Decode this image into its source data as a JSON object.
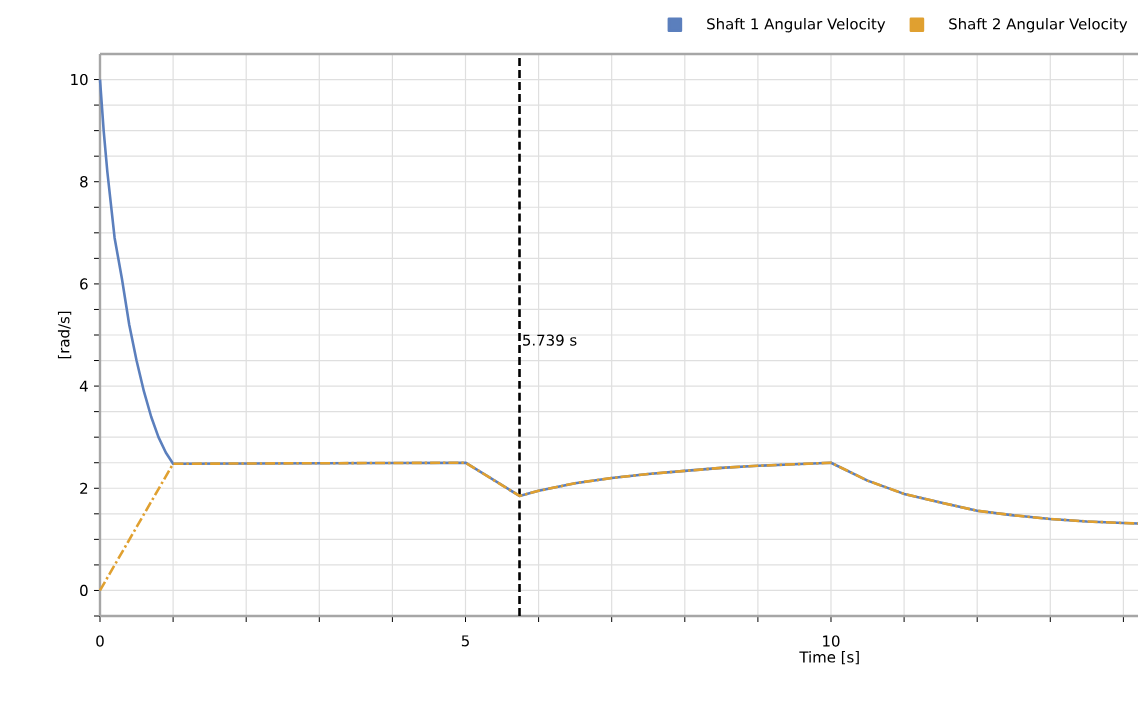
{
  "chart_data": {
    "type": "line",
    "xlabel": "Time [s]",
    "ylabel": "[rad/s]",
    "xlim": [
      0,
      14.2
    ],
    "ylim": [
      -0.5,
      10.5
    ],
    "xticks": [
      0,
      {
        "value": 1,
        "label": null
      },
      {
        "value": 2,
        "label": null
      },
      {
        "value": 3,
        "label": null
      },
      {
        "value": 4,
        "label": null
      },
      5,
      {
        "value": 6,
        "label": null
      },
      {
        "value": 7,
        "label": null
      },
      {
        "value": 8,
        "label": null
      },
      {
        "value": 9,
        "label": null
      },
      10,
      {
        "value": 11,
        "label": null
      },
      {
        "value": 12,
        "label": null
      },
      {
        "value": 13,
        "label": null
      },
      {
        "value": 14,
        "label": null
      }
    ],
    "yticks": [
      {
        "value": -0.5,
        "label": null
      },
      0,
      {
        "value": 0.5,
        "label": null
      },
      {
        "value": 1,
        "label": null
      },
      {
        "value": 1.5,
        "label": null
      },
      2,
      {
        "value": 2.5,
        "label": null
      },
      {
        "value": 3,
        "label": null
      },
      {
        "value": 3.5,
        "label": null
      },
      4,
      {
        "value": 4.5,
        "label": null
      },
      {
        "value": 5,
        "label": null
      },
      {
        "value": 5.5,
        "label": null
      },
      6,
      {
        "value": 6.5,
        "label": null
      },
      {
        "value": 7,
        "label": null
      },
      {
        "value": 7.5,
        "label": null
      },
      8,
      {
        "value": 8.5,
        "label": null
      },
      {
        "value": 9,
        "label": null
      },
      {
        "value": 9.5,
        "label": null
      },
      10
    ],
    "grid": true,
    "legend": "top right",
    "marker": "none",
    "series": [
      {
        "name": "Shaft 1 Angular Velocity",
        "color": "#5b7fbd",
        "line_style": "solid",
        "x": [
          0,
          0.05,
          0.1,
          0.2,
          0.3,
          0.4,
          0.5,
          0.6,
          0.7,
          0.8,
          0.9,
          1.0,
          5.0,
          5.739,
          6.0,
          6.5,
          7.0,
          7.5,
          8.0,
          8.5,
          9.0,
          9.5,
          10.0,
          10.5,
          11.0,
          11.5,
          12.0,
          12.5,
          13.0,
          13.5,
          14.0,
          14.2
        ],
        "values": [
          10,
          9.0,
          8.2,
          6.9,
          6.1,
          5.2,
          4.5,
          3.9,
          3.4,
          3.0,
          2.7,
          2.48,
          2.5,
          1.85,
          1.95,
          2.1,
          2.2,
          2.28,
          2.34,
          2.4,
          2.44,
          2.47,
          2.5,
          2.15,
          1.89,
          1.72,
          1.56,
          1.47,
          1.4,
          1.35,
          1.32,
          1.31
        ]
      },
      {
        "name": "Shaft 2 Angular Velocity",
        "color": "#e0a030",
        "line_style": "dashed",
        "x": [
          0,
          1.0,
          5.0,
          5.739,
          6.0,
          6.5,
          7.0,
          7.5,
          8.0,
          8.5,
          9.0,
          9.5,
          10.0,
          10.5,
          11.0,
          11.5,
          12.0,
          12.5,
          13.0,
          13.5,
          14.0,
          14.2
        ],
        "values": [
          0,
          2.48,
          2.5,
          1.85,
          1.95,
          2.1,
          2.2,
          2.28,
          2.34,
          2.4,
          2.44,
          2.47,
          2.5,
          2.15,
          1.89,
          1.72,
          1.56,
          1.47,
          1.4,
          1.35,
          1.32,
          1.31
        ]
      }
    ],
    "ref_lines": [
      {
        "axis": "x",
        "value": 5.739,
        "label": "5.739 s",
        "color": "#000000",
        "line_style": "dashed"
      }
    ]
  }
}
